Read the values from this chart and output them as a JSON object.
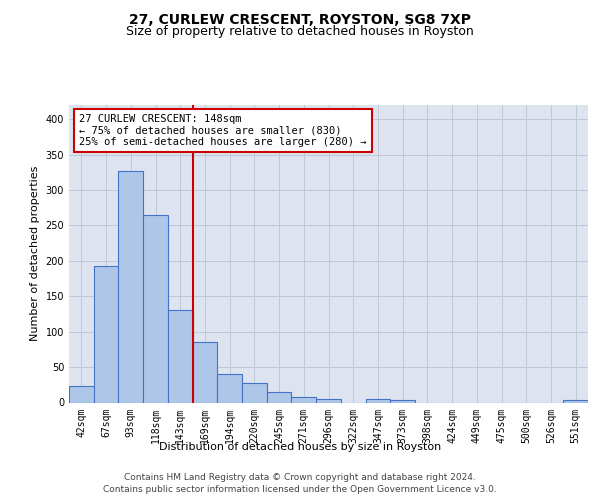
{
  "title_line1": "27, CURLEW CRESCENT, ROYSTON, SG8 7XP",
  "title_line2": "Size of property relative to detached houses in Royston",
  "xlabel": "Distribution of detached houses by size in Royston",
  "ylabel": "Number of detached properties",
  "footer_line1": "Contains HM Land Registry data © Crown copyright and database right 2024.",
  "footer_line2": "Contains public sector information licensed under the Open Government Licence v3.0.",
  "categories": [
    "42sqm",
    "67sqm",
    "93sqm",
    "118sqm",
    "143sqm",
    "169sqm",
    "194sqm",
    "220sqm",
    "245sqm",
    "271sqm",
    "296sqm",
    "322sqm",
    "347sqm",
    "373sqm",
    "398sqm",
    "424sqm",
    "449sqm",
    "475sqm",
    "500sqm",
    "526sqm",
    "551sqm"
  ],
  "values": [
    23,
    193,
    327,
    265,
    130,
    85,
    40,
    27,
    15,
    8,
    5,
    0,
    5,
    3,
    0,
    0,
    0,
    0,
    0,
    0,
    3
  ],
  "bar_color": "#aec6e8",
  "bar_edge_color": "#4472c4",
  "bar_linewidth": 0.8,
  "vline_color": "#cc0000",
  "annotation_line1": "27 CURLEW CRESCENT: 148sqm",
  "annotation_line2": "← 75% of detached houses are smaller (830)",
  "annotation_line3": "25% of semi-detached houses are larger (280) →",
  "annotation_box_color": "white",
  "annotation_box_edgecolor": "#cc0000",
  "ylim": [
    0,
    420
  ],
  "yticks": [
    0,
    50,
    100,
    150,
    200,
    250,
    300,
    350,
    400
  ],
  "grid_color": "#c0c8d8",
  "bg_color": "#dde4f0",
  "title_fontsize": 10,
  "subtitle_fontsize": 9,
  "axis_label_fontsize": 8,
  "tick_fontsize": 7,
  "annot_fontsize": 7.5,
  "footer_fontsize": 6.5
}
